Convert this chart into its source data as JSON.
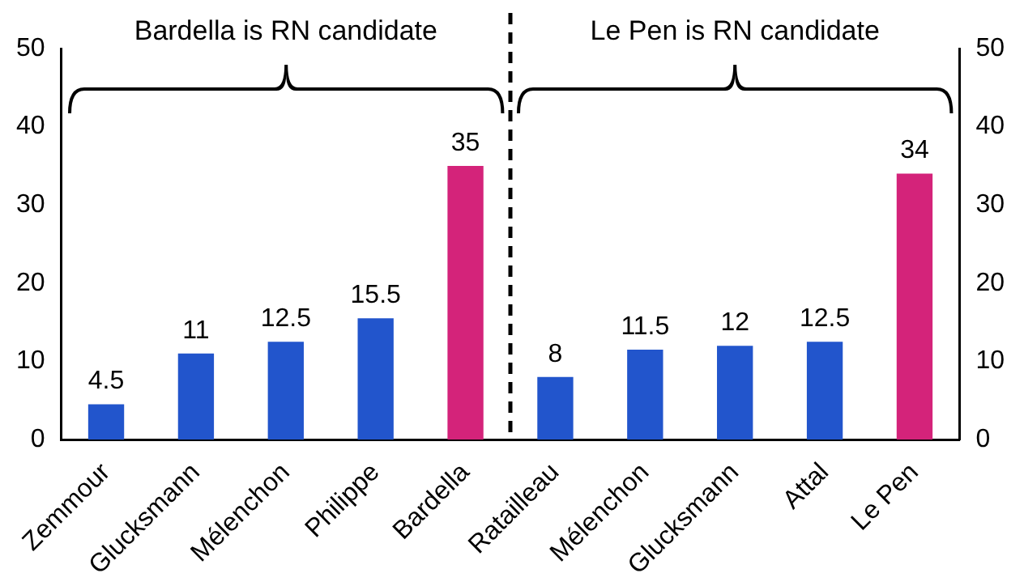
{
  "chart_data": {
    "type": "bar",
    "categories": [
      "Zemmour",
      "Glucksmann",
      "Mélenchon",
      "Philippe",
      "Bardella",
      "Ratailleau",
      "Mélenchon",
      "Glucksmann",
      "Attal",
      "Le Pen"
    ],
    "values": [
      4.5,
      11,
      12.5,
      15.5,
      35,
      8,
      11.5,
      12,
      12.5,
      34
    ],
    "colors": [
      "#2255cc",
      "#2255cc",
      "#2255cc",
      "#2255cc",
      "#d4237a",
      "#2255cc",
      "#2255cc",
      "#2255cc",
      "#2255cc",
      "#d4237a"
    ],
    "ylim": [
      0,
      50
    ],
    "yticks": [
      0,
      10,
      20,
      30,
      40,
      50
    ],
    "y2lim": [
      0,
      50
    ],
    "y2ticks": [
      0,
      10,
      20,
      30,
      40,
      50
    ],
    "data_labels": true,
    "grid": false,
    "legend": false,
    "annotations": [
      "Bardella is RN candidate",
      "Le Pen is RN candidate"
    ]
  }
}
